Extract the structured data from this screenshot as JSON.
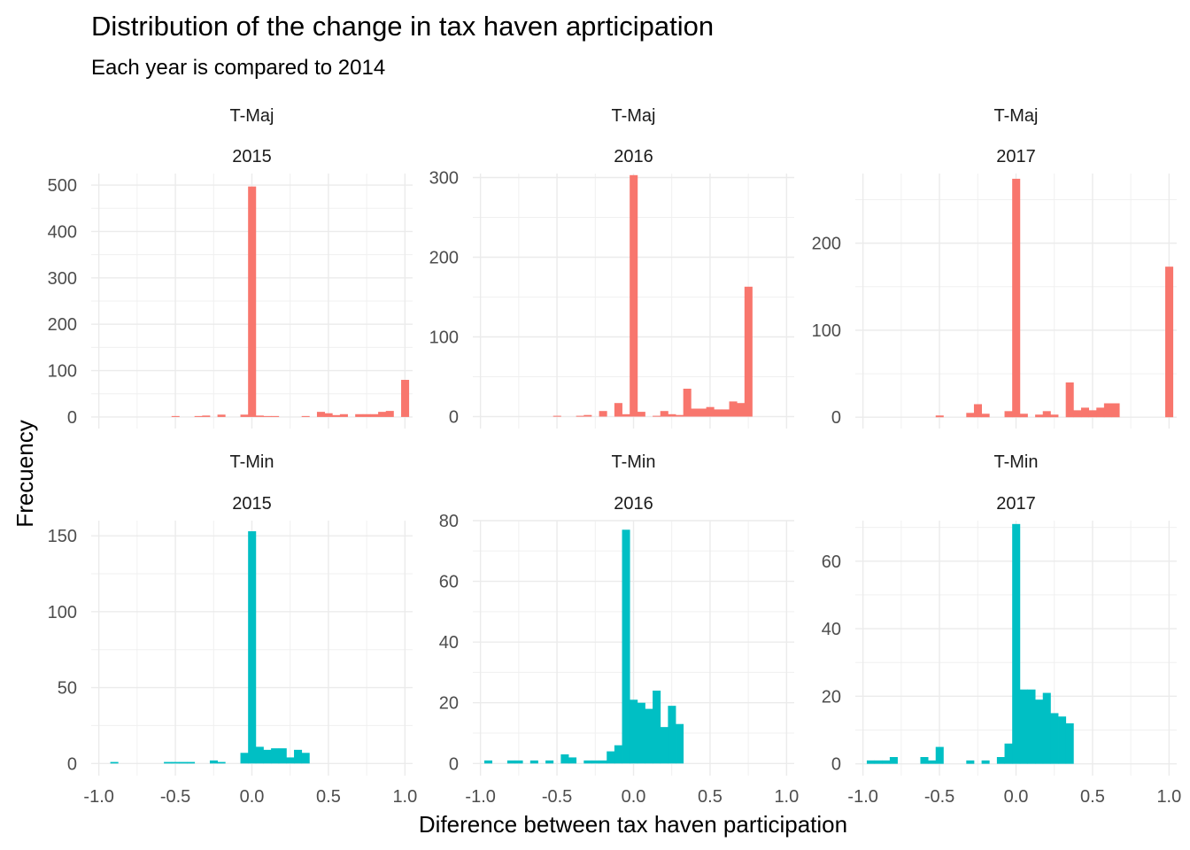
{
  "chart_data": {
    "type": "bar",
    "title": "Distribution of the change in tax haven aprticipation",
    "subtitle": "Each year is compared to 2014",
    "xlabel": "Diference between tax haven participation",
    "ylabel": "Frecuency",
    "grid": true,
    "legend": "none",
    "bin_width": 0.05,
    "xlim": [
      -1.05,
      1.05
    ],
    "x_ticks": [
      -1.0,
      -0.5,
      0.0,
      0.5,
      1.0
    ],
    "x_tick_labels": [
      "-1.0",
      "-0.5",
      "0.0",
      "0.5",
      "1.0"
    ],
    "panels": [
      {
        "group": "T-Maj",
        "year": "2015",
        "color": "#F8766D",
        "ylim": [
          -25,
          525
        ],
        "y_ticks": [
          0,
          100,
          200,
          300,
          400,
          500
        ],
        "bins": [
          {
            "x": -0.5,
            "count": 2
          },
          {
            "x": -0.35,
            "count": 2
          },
          {
            "x": -0.3,
            "count": 3
          },
          {
            "x": -0.2,
            "count": 5
          },
          {
            "x": -0.05,
            "count": 5
          },
          {
            "x": 0.0,
            "count": 497
          },
          {
            "x": 0.05,
            "count": 3
          },
          {
            "x": 0.1,
            "count": 2
          },
          {
            "x": 0.15,
            "count": 2
          },
          {
            "x": 0.35,
            "count": 2
          },
          {
            "x": 0.45,
            "count": 11
          },
          {
            "x": 0.5,
            "count": 8
          },
          {
            "x": 0.55,
            "count": 4
          },
          {
            "x": 0.6,
            "count": 6
          },
          {
            "x": 0.7,
            "count": 6
          },
          {
            "x": 0.75,
            "count": 6
          },
          {
            "x": 0.8,
            "count": 6
          },
          {
            "x": 0.85,
            "count": 11
          },
          {
            "x": 0.9,
            "count": 13
          },
          {
            "x": 1.0,
            "count": 80
          }
        ]
      },
      {
        "group": "T-Maj",
        "year": "2016",
        "color": "#F8766D",
        "ylim": [
          -15,
          305
        ],
        "y_ticks": [
          0,
          100,
          200,
          300
        ],
        "bins": [
          {
            "x": -0.5,
            "count": 1
          },
          {
            "x": -0.35,
            "count": 1
          },
          {
            "x": -0.3,
            "count": 2
          },
          {
            "x": -0.2,
            "count": 7
          },
          {
            "x": -0.1,
            "count": 17
          },
          {
            "x": -0.05,
            "count": 3
          },
          {
            "x": 0.0,
            "count": 303
          },
          {
            "x": 0.05,
            "count": 6
          },
          {
            "x": 0.15,
            "count": 1
          },
          {
            "x": 0.2,
            "count": 7
          },
          {
            "x": 0.25,
            "count": 3
          },
          {
            "x": 0.3,
            "count": 2
          },
          {
            "x": 0.35,
            "count": 35
          },
          {
            "x": 0.4,
            "count": 10
          },
          {
            "x": 0.45,
            "count": 10
          },
          {
            "x": 0.5,
            "count": 12
          },
          {
            "x": 0.55,
            "count": 9
          },
          {
            "x": 0.6,
            "count": 9
          },
          {
            "x": 0.65,
            "count": 19
          },
          {
            "x": 0.7,
            "count": 17
          },
          {
            "x": 0.75,
            "count": 163
          }
        ]
      },
      {
        "group": "T-Maj",
        "year": "2017",
        "color": "#F8766D",
        "ylim": [
          -13,
          280
        ],
        "y_ticks": [
          0,
          100,
          200
        ],
        "bins": [
          {
            "x": -0.5,
            "count": 2
          },
          {
            "x": -0.3,
            "count": 5
          },
          {
            "x": -0.25,
            "count": 15
          },
          {
            "x": -0.2,
            "count": 4
          },
          {
            "x": -0.05,
            "count": 7
          },
          {
            "x": 0.0,
            "count": 274
          },
          {
            "x": 0.05,
            "count": 4
          },
          {
            "x": 0.15,
            "count": 3
          },
          {
            "x": 0.2,
            "count": 7
          },
          {
            "x": 0.25,
            "count": 3
          },
          {
            "x": 0.35,
            "count": 40
          },
          {
            "x": 0.4,
            "count": 8
          },
          {
            "x": 0.45,
            "count": 11
          },
          {
            "x": 0.5,
            "count": 8
          },
          {
            "x": 0.55,
            "count": 11
          },
          {
            "x": 0.6,
            "count": 16
          },
          {
            "x": 0.65,
            "count": 16
          },
          {
            "x": 1.0,
            "count": 173
          }
        ]
      },
      {
        "group": "T-Min",
        "year": "2015",
        "color": "#00BFC4",
        "ylim": [
          -8,
          160
        ],
        "y_ticks": [
          0,
          50,
          100,
          150
        ],
        "bins": [
          {
            "x": -0.9,
            "count": 1
          },
          {
            "x": -0.55,
            "count": 1
          },
          {
            "x": -0.5,
            "count": 1
          },
          {
            "x": -0.45,
            "count": 1
          },
          {
            "x": -0.4,
            "count": 1
          },
          {
            "x": -0.25,
            "count": 2
          },
          {
            "x": -0.2,
            "count": 1
          },
          {
            "x": -0.05,
            "count": 7
          },
          {
            "x": 0.0,
            "count": 153
          },
          {
            "x": 0.05,
            "count": 11
          },
          {
            "x": 0.1,
            "count": 9
          },
          {
            "x": 0.15,
            "count": 10
          },
          {
            "x": 0.2,
            "count": 10
          },
          {
            "x": 0.25,
            "count": 4
          },
          {
            "x": 0.3,
            "count": 9
          },
          {
            "x": 0.35,
            "count": 7
          }
        ]
      },
      {
        "group": "T-Min",
        "year": "2016",
        "color": "#00BFC4",
        "ylim": [
          -4,
          80
        ],
        "y_ticks": [
          0,
          20,
          40,
          60,
          80
        ],
        "bins": [
          {
            "x": -0.95,
            "count": 1
          },
          {
            "x": -0.8,
            "count": 1
          },
          {
            "x": -0.75,
            "count": 1
          },
          {
            "x": -0.65,
            "count": 1
          },
          {
            "x": -0.55,
            "count": 1
          },
          {
            "x": -0.45,
            "count": 3
          },
          {
            "x": -0.4,
            "count": 2
          },
          {
            "x": -0.3,
            "count": 1
          },
          {
            "x": -0.25,
            "count": 1
          },
          {
            "x": -0.2,
            "count": 1
          },
          {
            "x": -0.15,
            "count": 4
          },
          {
            "x": -0.1,
            "count": 6
          },
          {
            "x": -0.05,
            "count": 77
          },
          {
            "x": 0.0,
            "count": 21
          },
          {
            "x": 0.05,
            "count": 20
          },
          {
            "x": 0.1,
            "count": 18
          },
          {
            "x": 0.15,
            "count": 24
          },
          {
            "x": 0.2,
            "count": 12
          },
          {
            "x": 0.25,
            "count": 19
          },
          {
            "x": 0.3,
            "count": 13
          }
        ]
      },
      {
        "group": "T-Min",
        "year": "2017",
        "color": "#00BFC4",
        "ylim": [
          -3.5,
          72
        ],
        "y_ticks": [
          0,
          20,
          40,
          60
        ],
        "bins": [
          {
            "x": -0.95,
            "count": 1
          },
          {
            "x": -0.9,
            "count": 1
          },
          {
            "x": -0.85,
            "count": 1
          },
          {
            "x": -0.8,
            "count": 2
          },
          {
            "x": -0.6,
            "count": 2
          },
          {
            "x": -0.55,
            "count": 1
          },
          {
            "x": -0.5,
            "count": 5
          },
          {
            "x": -0.3,
            "count": 1
          },
          {
            "x": -0.2,
            "count": 1
          },
          {
            "x": -0.1,
            "count": 2
          },
          {
            "x": -0.05,
            "count": 6
          },
          {
            "x": 0.0,
            "count": 71
          },
          {
            "x": 0.05,
            "count": 22
          },
          {
            "x": 0.1,
            "count": 22
          },
          {
            "x": 0.15,
            "count": 19
          },
          {
            "x": 0.2,
            "count": 21
          },
          {
            "x": 0.25,
            "count": 15
          },
          {
            "x": 0.3,
            "count": 14
          },
          {
            "x": 0.35,
            "count": 12
          }
        ]
      }
    ]
  }
}
